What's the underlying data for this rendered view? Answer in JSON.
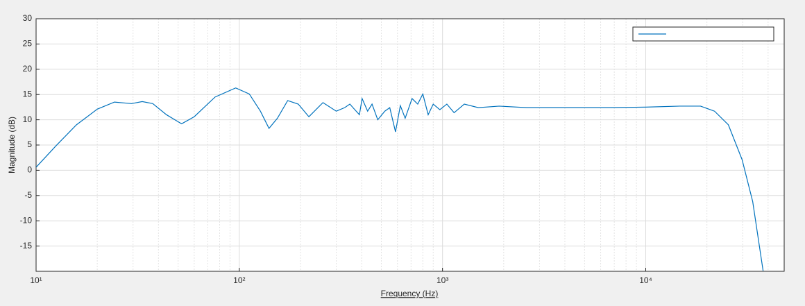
{
  "chart_data": {
    "type": "line",
    "xlabel": "Frequency (Hz)",
    "ylabel": "Magnitude (dB)",
    "x": [
      10,
      12.5,
      15.8,
      20,
      24.3,
      29.5,
      33.3,
      37.5,
      43.8,
      52,
      60,
      76,
      96,
      112,
      127,
      140,
      154,
      173,
      195,
      220,
      258,
      300,
      330,
      350,
      370,
      390,
      402,
      428,
      450,
      480,
      520,
      550,
      587,
      620,
      655,
      708,
      755,
      800,
      850,
      900,
      970,
      1050,
      1140,
      1280,
      1500,
      1900,
      2600,
      4200,
      6700,
      10000,
      14700,
      18600,
      21800,
      25500,
      29800,
      33600,
      37800
    ],
    "series": [
      {
        "color": "#0072bd",
        "values": [
          0.6,
          4.8,
          9,
          12.1,
          13.5,
          13.2,
          13.6,
          13.2,
          11,
          9.2,
          10.6,
          14.5,
          16.3,
          15.1,
          11.7,
          8.3,
          10.3,
          13.8,
          13.1,
          10.6,
          13.4,
          11.7,
          12.4,
          13.1,
          12,
          11,
          14.2,
          11.7,
          13.1,
          10,
          11.7,
          12.4,
          7.6,
          12.8,
          10.3,
          14.2,
          13.1,
          15.1,
          11,
          13.1,
          12,
          13.1,
          11.4,
          13.1,
          12.4,
          12.7,
          12.4,
          12.4,
          12.4,
          12.5,
          12.7,
          12.7,
          11.7,
          9,
          2.1,
          -6.2,
          -19.9
        ]
      }
    ],
    "xscale": "log",
    "xlim": [
      10,
      48000
    ],
    "ylim": [
      -20,
      30
    ],
    "xticks": [
      {
        "value": 10,
        "label": "10¹"
      },
      {
        "value": 100,
        "label": "10²"
      },
      {
        "value": 1000,
        "label": "10³"
      },
      {
        "value": 10000,
        "label": "10⁴"
      }
    ],
    "yticks": [
      -15,
      -10,
      -5,
      0,
      5,
      10,
      15,
      20,
      25,
      30
    ],
    "grid": true,
    "minor_grid": true,
    "legend": "northeast"
  }
}
